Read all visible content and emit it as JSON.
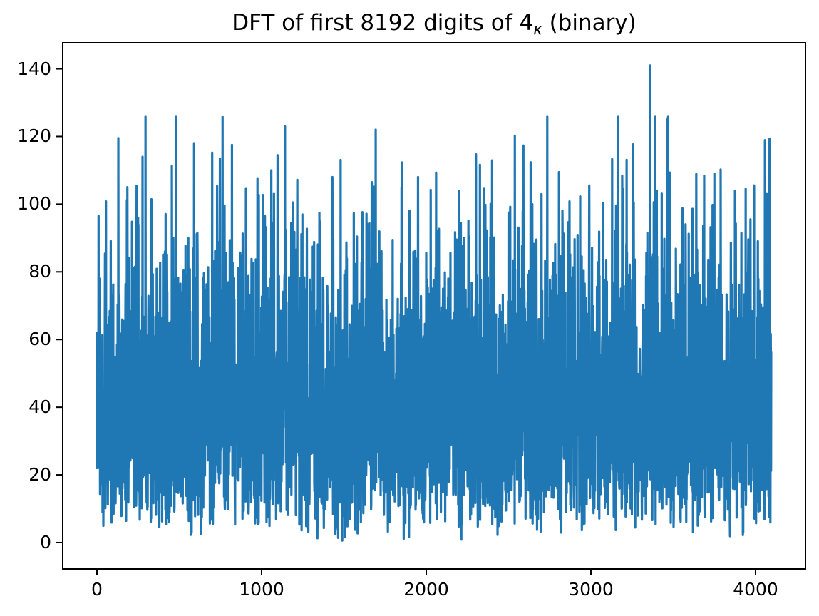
{
  "figure": {
    "title": {
      "full": "DFT of first 8192 digits of 4κ (binary)",
      "prefix": "DFT of first 8192 digits of 4",
      "subscript": "κ",
      "suffix": " (binary)"
    },
    "background_color": "#ffffff",
    "axes_color": "#000000"
  },
  "chart_data": {
    "type": "line",
    "title": "DFT of first 8192 digits of 4κ (binary)",
    "xlabel": "",
    "ylabel": "",
    "legend": null,
    "grid": false,
    "x_ticks": [
      0,
      1000,
      2000,
      3000,
      4000
    ],
    "x_tick_labels": [
      "0",
      "1000",
      "2000",
      "3000",
      "4000"
    ],
    "y_ticks": [
      0,
      20,
      40,
      60,
      80,
      100,
      120,
      140
    ],
    "y_tick_labels": [
      "0",
      "20",
      "40",
      "60",
      "80",
      "100",
      "120",
      "140"
    ],
    "xlim": [
      -207.8,
      4303.0
    ],
    "ylim": [
      -7.8,
      147.7
    ],
    "x_range": [
      0,
      4095
    ],
    "n_points": 4096,
    "line_color": "#1f77b4",
    "line_width": 3.2,
    "series_description": "Noise-like DFT magnitude spectrum: bins 0-4095 of an 8192-point DFT of a binary digit sequence; Rayleigh-distributed magnitudes, dense band ~18-60, frequent spikes to 80-120, occasional dips to ~1, global maximum ~141 near bin 3360.",
    "synthesis": {
      "distribution": "rayleigh",
      "sigma": 34,
      "seed": 1337,
      "clip_min": 0.6,
      "clip_max": 126
    },
    "notable_peaks": [
      {
        "x": 10,
        "y": 96.5
      },
      {
        "x": 55,
        "y": 100.8
      },
      {
        "x": 130,
        "y": 119.5
      },
      {
        "x": 185,
        "y": 105.0
      },
      {
        "x": 250,
        "y": 96.0
      },
      {
        "x": 455,
        "y": 111.3
      },
      {
        "x": 590,
        "y": 118.0
      },
      {
        "x": 700,
        "y": 115.2
      },
      {
        "x": 820,
        "y": 117.5
      },
      {
        "x": 905,
        "y": 104.7
      },
      {
        "x": 1020,
        "y": 96.5
      },
      {
        "x": 1195,
        "y": 91.2
      },
      {
        "x": 1430,
        "y": 108.0
      },
      {
        "x": 1560,
        "y": 97.3
      },
      {
        "x": 1693,
        "y": 122.0
      },
      {
        "x": 1850,
        "y": 105.0
      },
      {
        "x": 1950,
        "y": 108.0
      },
      {
        "x": 2060,
        "y": 109.3
      },
      {
        "x": 2210,
        "y": 94.5
      },
      {
        "x": 2400,
        "y": 112.9
      },
      {
        "x": 2510,
        "y": 99.2
      },
      {
        "x": 2590,
        "y": 117.3
      },
      {
        "x": 2700,
        "y": 103.0
      },
      {
        "x": 2870,
        "y": 100.8
      },
      {
        "x": 2990,
        "y": 105.5
      },
      {
        "x": 3190,
        "y": 108.4
      },
      {
        "x": 3260,
        "y": 100.5
      },
      {
        "x": 3360,
        "y": 141.0
      },
      {
        "x": 3430,
        "y": 103.3
      },
      {
        "x": 3640,
        "y": 108.9
      },
      {
        "x": 3750,
        "y": 109.0
      },
      {
        "x": 3940,
        "y": 104.5
      },
      {
        "x": 4057,
        "y": 118.9
      },
      {
        "x": 4085,
        "y": 119.3
      }
    ],
    "axis_style": {
      "spine_width": 2,
      "tick_length": 8,
      "tick_width": 2,
      "tick_direction": "out"
    }
  }
}
